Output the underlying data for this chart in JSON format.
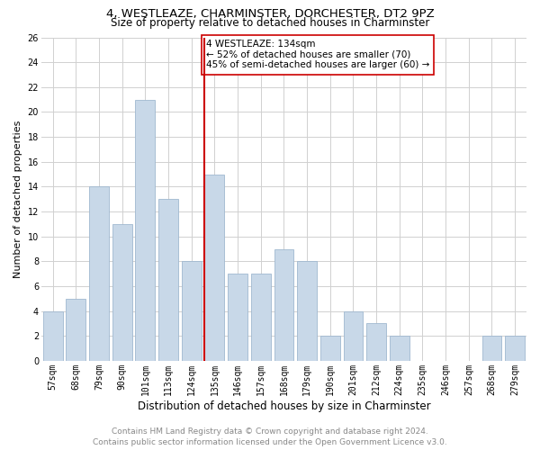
{
  "title": "4, WESTLEAZE, CHARMINSTER, DORCHESTER, DT2 9PZ",
  "subtitle": "Size of property relative to detached houses in Charminster",
  "xlabel": "Distribution of detached houses by size in Charminster",
  "ylabel": "Number of detached properties",
  "footer_line1": "Contains HM Land Registry data © Crown copyright and database right 2024.",
  "footer_line2": "Contains public sector information licensed under the Open Government Licence v3.0.",
  "categories": [
    "57sqm",
    "68sqm",
    "79sqm",
    "90sqm",
    "101sqm",
    "113sqm",
    "124sqm",
    "135sqm",
    "146sqm",
    "157sqm",
    "168sqm",
    "179sqm",
    "190sqm",
    "201sqm",
    "212sqm",
    "224sqm",
    "235sqm",
    "246sqm",
    "257sqm",
    "268sqm",
    "279sqm"
  ],
  "values": [
    4,
    5,
    14,
    11,
    21,
    13,
    8,
    15,
    7,
    7,
    9,
    8,
    2,
    4,
    3,
    2,
    0,
    0,
    0,
    2,
    2
  ],
  "bar_color": "#c8d8e8",
  "bar_edge_color": "#a0b8d0",
  "reference_line_idx": 7,
  "reference_line_color": "#cc0000",
  "annotation_text": "4 WESTLEAZE: 134sqm\n← 52% of detached houses are smaller (70)\n45% of semi-detached houses are larger (60) →",
  "annotation_box_color": "#ffffff",
  "annotation_box_edge_color": "#cc0000",
  "ylim": [
    0,
    26
  ],
  "yticks": [
    0,
    2,
    4,
    6,
    8,
    10,
    12,
    14,
    16,
    18,
    20,
    22,
    24,
    26
  ],
  "grid_color": "#d0d0d0",
  "background_color": "#ffffff",
  "title_fontsize": 9.5,
  "subtitle_fontsize": 8.5,
  "xlabel_fontsize": 8.5,
  "ylabel_fontsize": 8,
  "tick_fontsize": 7,
  "annotation_fontsize": 7.5,
  "footer_fontsize": 6.5
}
